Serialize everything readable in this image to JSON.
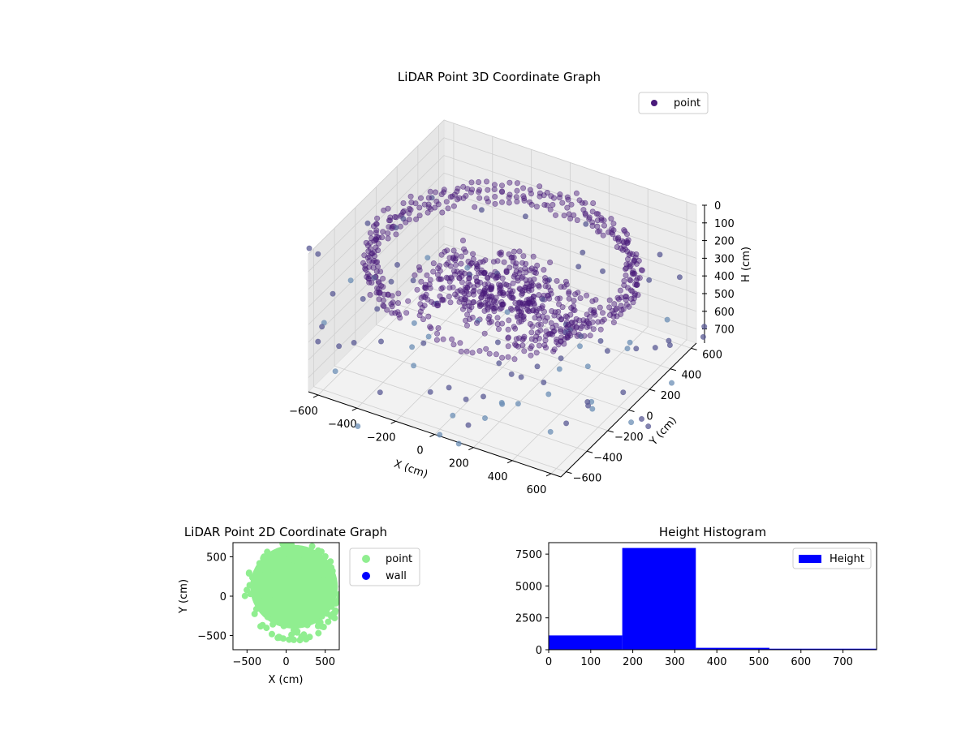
{
  "chart_data": [
    {
      "type": "scatter",
      "title": "LiDAR Point 3D Coordinate Graph",
      "xlabel": "X (cm)",
      "ylabel": "Y (cm)",
      "zlabel": "H (cm)",
      "xlim": [
        -650,
        650
      ],
      "ylim": [
        -650,
        650
      ],
      "zlim": [
        0,
        780
      ],
      "z_inverted": true,
      "x_ticks": [
        -600,
        -400,
        -200,
        0,
        200,
        400,
        600
      ],
      "y_ticks": [
        -600,
        -400,
        -200,
        0,
        200,
        400,
        600
      ],
      "z_ticks": [
        0,
        100,
        200,
        300,
        400,
        500,
        600,
        700
      ],
      "legend": [
        "point"
      ],
      "legend_position": "top-right",
      "colors": {
        "point": "#4a1a7a",
        "far_point": "#6c8fb5",
        "pane": "#f2f2f2",
        "grid": "#d0d0d0"
      },
      "description_of_data": "dense ring of points roughly 550-650 cm from origin at height about 200-300 cm, with sparse outliers down to 780 cm"
    },
    {
      "type": "scatter",
      "title": "LiDAR Point 2D Coordinate Graph",
      "xlabel": "X (cm)",
      "ylabel": "Y (cm)",
      "xlim": [
        -680,
        680
      ],
      "ylim": [
        -680,
        680
      ],
      "x_ticks": [
        -500,
        0,
        500
      ],
      "y_ticks": [
        -500,
        0,
        500
      ],
      "series": [
        {
          "name": "point",
          "color": "#90ee90"
        },
        {
          "name": "wall",
          "color": "#0000ff"
        }
      ],
      "legend_position": "outside-right"
    },
    {
      "type": "bar",
      "title": "Height Histogram",
      "bins": [
        [
          0,
          175
        ],
        [
          175,
          350
        ],
        [
          350,
          525
        ],
        [
          525,
          780
        ]
      ],
      "values": [
        1120,
        7980,
        150,
        80
      ],
      "xlim": [
        0,
        780
      ],
      "ylim": [
        0,
        8400
      ],
      "x_ticks": [
        0,
        100,
        200,
        300,
        400,
        500,
        600,
        700
      ],
      "y_ticks": [
        0,
        2500,
        5000,
        7500
      ],
      "series": [
        {
          "name": "Height",
          "color": "#0000ff"
        }
      ],
      "legend_position": "top-right"
    }
  ]
}
